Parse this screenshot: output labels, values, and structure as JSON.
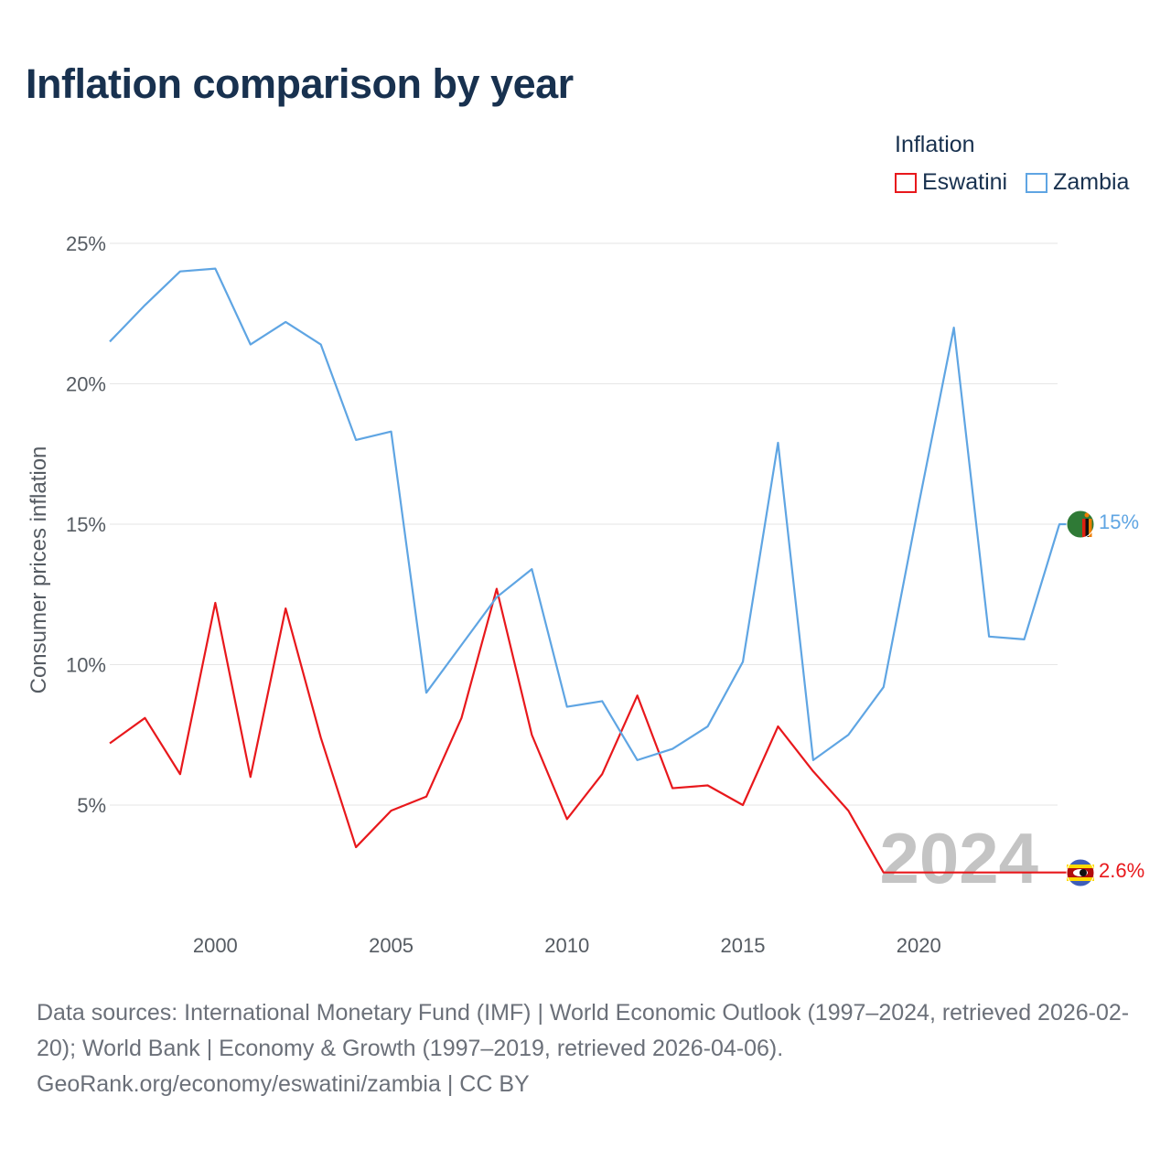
{
  "title": "Inflation comparison by year",
  "legend": {
    "title": "Inflation",
    "items": [
      {
        "name": "Eswatini",
        "color": "#e8181c"
      },
      {
        "name": "Zambia",
        "color": "#5fa5e3"
      }
    ]
  },
  "year_marker": "2024",
  "end_labels": {
    "eswatini": "2.6%",
    "zambia": "15%"
  },
  "source": {
    "line1": "Data sources: International Monetary Fund (IMF) | World Economic Outlook (1997–2024, retrieved 2026-02-20); World Bank | Economy & Growth (1997–2019, retrieved 2026-04-06).",
    "line2": "GeoRank.org/economy/eswatini/zambia | CC BY"
  },
  "chart_data": {
    "type": "line",
    "title": "Inflation comparison by year",
    "xlabel": "",
    "ylabel": "Consumer prices inflation",
    "xlim": [
      1997,
      2024
    ],
    "ylim": [
      2.5,
      25
    ],
    "x_ticks": [
      2000,
      2005,
      2010,
      2015,
      2020
    ],
    "y_ticks": [
      5,
      10,
      15,
      20,
      25
    ],
    "y_tick_labels": [
      "5%",
      "10%",
      "15%",
      "20%",
      "25%"
    ],
    "grid": true,
    "legend_position": "top-right",
    "x": [
      1997,
      1998,
      1999,
      2000,
      2001,
      2002,
      2003,
      2004,
      2005,
      2006,
      2007,
      2008,
      2009,
      2010,
      2011,
      2012,
      2013,
      2014,
      2015,
      2016,
      2017,
      2018,
      2019,
      2020,
      2021,
      2022,
      2023,
      2024
    ],
    "series": [
      {
        "name": "Eswatini",
        "color": "#e8181c",
        "values": [
          7.2,
          8.1,
          6.1,
          12.2,
          6.0,
          12.0,
          7.4,
          3.5,
          4.8,
          5.3,
          8.1,
          12.7,
          7.5,
          4.5,
          6.1,
          8.9,
          5.6,
          5.7,
          5.0,
          7.8,
          6.2,
          4.8,
          2.6,
          2.6,
          2.6,
          2.6,
          2.6,
          2.6
        ]
      },
      {
        "name": "Zambia",
        "color": "#5fa5e3",
        "values": [
          21.5,
          22.8,
          24.0,
          24.1,
          21.4,
          22.2,
          21.4,
          18.0,
          18.3,
          9.0,
          10.7,
          12.4,
          13.4,
          8.5,
          8.7,
          6.6,
          7.0,
          7.8,
          10.1,
          17.9,
          6.6,
          7.5,
          9.2,
          15.7,
          22.0,
          11.0,
          10.9,
          15.0
        ]
      }
    ]
  }
}
